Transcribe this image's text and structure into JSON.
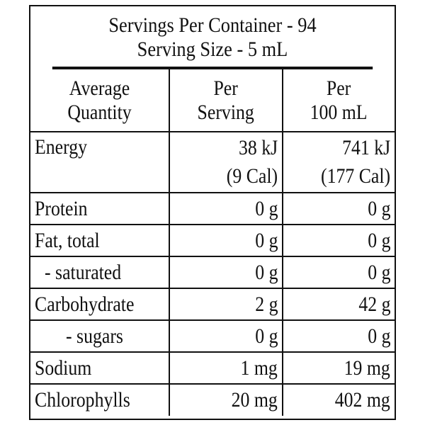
{
  "header": {
    "servings_per_container": "Servings Per Container - 94",
    "serving_size": "Serving Size - 5 mL"
  },
  "columns": {
    "quantity_line1": "Average",
    "quantity_line2": "Quantity",
    "per_serving_line1": "Per",
    "per_serving_line2": "Serving",
    "per_100ml_line1": "Per",
    "per_100ml_line2": "100 mL"
  },
  "energy": {
    "label": "Energy",
    "per_serving_kj": "38 kJ",
    "per_serving_cal": "(9 Cal)",
    "per_100ml_kj": "741 kJ",
    "per_100ml_cal": "(177 Cal)"
  },
  "rows": [
    {
      "label": "Protein",
      "per_serving": "0 g",
      "per_100ml": "0 g"
    },
    {
      "label": "Fat, total",
      "per_serving": "0 g",
      "per_100ml": "0 g"
    },
    {
      "label": "- saturated",
      "per_serving": "0 g",
      "per_100ml": "0 g"
    },
    {
      "label": "Carbohydrate",
      "per_serving": "2 g",
      "per_100ml": "42 g"
    },
    {
      "label": "- sugars",
      "per_serving": "0 g",
      "per_100ml": "0 g"
    },
    {
      "label": "Sodium",
      "per_serving": "1 mg",
      "per_100ml": "19 mg"
    },
    {
      "label": "Chlorophylls",
      "per_serving": "20 mg",
      "per_100ml": "402 mg"
    }
  ]
}
